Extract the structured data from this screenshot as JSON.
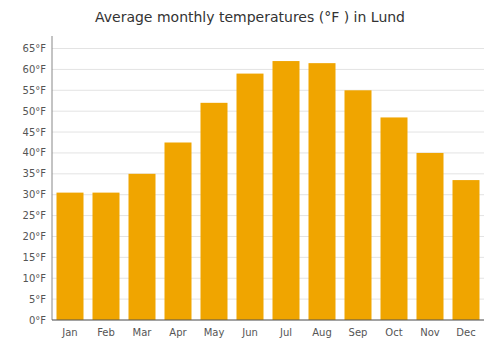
{
  "chart_data": {
    "type": "bar",
    "title": "Average monthly temperatures (°F ) in Lund",
    "categories": [
      "Jan",
      "Feb",
      "Mar",
      "Apr",
      "May",
      "Jun",
      "Jul",
      "Aug",
      "Sep",
      "Oct",
      "Nov",
      "Dec"
    ],
    "values": [
      30.5,
      30.5,
      35.0,
      42.5,
      52.0,
      59.0,
      62.0,
      61.5,
      55.0,
      48.5,
      40.0,
      33.5
    ],
    "color": "#F0A500",
    "ylim": [
      0,
      68
    ],
    "yticks": [
      {
        "value": 0,
        "label": "0°F"
      },
      {
        "value": 5,
        "label": "5°F"
      },
      {
        "value": 10,
        "label": "10°F"
      },
      {
        "value": 15,
        "label": "15°F"
      },
      {
        "value": 20,
        "label": "20°F"
      },
      {
        "value": 25,
        "label": "25°F"
      },
      {
        "value": 30,
        "label": "30°F"
      },
      {
        "value": 35,
        "label": "35°F"
      },
      {
        "value": 40,
        "label": "40°F"
      },
      {
        "value": 45,
        "label": "45°F"
      },
      {
        "value": 50,
        "label": "50°F"
      },
      {
        "value": 55,
        "label": "55°F"
      },
      {
        "value": 60,
        "label": "60°F"
      },
      {
        "value": 65,
        "label": "65°F"
      }
    ],
    "grid": true
  }
}
